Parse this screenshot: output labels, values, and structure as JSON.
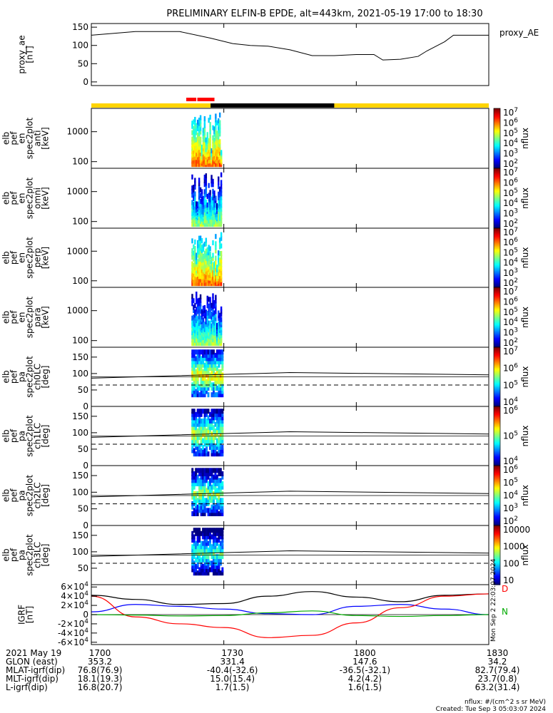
{
  "title": "PRELIMINARY ELFIN-B EPDE, alt=443km, 2021-05-19 17:00 to 18:30",
  "colors": {
    "sunlight": "#ffd400",
    "shadow": "#000000",
    "science_marker": "#ff0000",
    "bx": "#000000",
    "by": "#0000ff",
    "bz": "#ff0000",
    "zero_ref": "#00aa00"
  },
  "chart_data": [
    {
      "type": "line",
      "panel": "proxy_ae",
      "ylabel": [
        "proxy_ae",
        "[nT]"
      ],
      "legend": "proxy_AE",
      "ylim": [
        -10,
        160
      ],
      "yticks": [
        "0",
        "50",
        "100",
        "150"
      ],
      "ytick_values": [
        0,
        50,
        100,
        150
      ],
      "x_minutes": [
        0,
        10,
        20,
        27,
        32,
        36,
        40,
        45,
        50,
        55,
        60,
        64,
        66,
        70,
        74,
        76,
        80,
        82,
        84,
        86,
        88,
        90
      ],
      "values": [
        128,
        138,
        138,
        120,
        105,
        100,
        98,
        88,
        72,
        72,
        75,
        75,
        60,
        62,
        70,
        85,
        110,
        128,
        128,
        128,
        128,
        128
      ]
    },
    {
      "type": "heatmap",
      "panel": "en_spec_anti",
      "ylabel": [
        "elb",
        "pef",
        "en",
        "spec2plot",
        "anti",
        "[keV]"
      ],
      "yticks": [
        "100",
        "1000"
      ],
      "colorbar_label": "nflux",
      "colorbar_ticks": [
        "10^2",
        "10^3",
        "10^4",
        "10^5",
        "10^6",
        "10^7"
      ],
      "activity_minutes": [
        22.5,
        25.5
      ]
    },
    {
      "type": "heatmap",
      "panel": "en_spec_omni",
      "ylabel": [
        "elb",
        "pef",
        "en",
        "spec2plot",
        "omni",
        "[keV]"
      ],
      "yticks": [
        "100",
        "1000"
      ],
      "colorbar_label": "nflux",
      "colorbar_ticks": [
        "10^2",
        "10^3",
        "10^4",
        "10^5",
        "10^6",
        "10^7"
      ],
      "activity_minutes": [
        22.5,
        25.5
      ]
    },
    {
      "type": "heatmap",
      "panel": "en_spec_perp",
      "ylabel": [
        "elb",
        "pef",
        "en",
        "spec2plot",
        "perp",
        "[keV]"
      ],
      "yticks": [
        "100",
        "1000"
      ],
      "colorbar_label": "nflux",
      "colorbar_ticks": [
        "10^2",
        "10^3",
        "10^4",
        "10^5",
        "10^6",
        "10^7"
      ],
      "activity_minutes": [
        22.5,
        25.5
      ]
    },
    {
      "type": "heatmap",
      "panel": "en_spec_para",
      "ylabel": [
        "elb",
        "pef",
        "en",
        "spec2plot",
        "para",
        "[keV]"
      ],
      "yticks": [
        "100",
        "1000"
      ],
      "colorbar_label": "nflux",
      "colorbar_ticks": [
        "10^2",
        "10^3",
        "10^4",
        "10^5",
        "10^6",
        "10^7"
      ],
      "activity_minutes": [
        22.5,
        25.5
      ]
    },
    {
      "type": "heatmap",
      "panel": "pa_spec_ch0LC",
      "ylabel": [
        "elb",
        "pef",
        "pa",
        "spec2plot",
        "ch0LC",
        "[deg]"
      ],
      "yticks": [
        "0",
        "50",
        "100",
        "150"
      ],
      "ylim": [
        0,
        180
      ],
      "colorbar_label": "nflux",
      "colorbar_ticks": [
        "10^4",
        "10^5",
        "10^6",
        "10^7"
      ],
      "losscone_deg": [
        86,
        103,
        96
      ],
      "antilosscone_deg": 65
    },
    {
      "type": "heatmap",
      "panel": "pa_spec_ch1LC",
      "ylabel": [
        "elb",
        "pef",
        "pa",
        "spec2plot",
        "ch1LC",
        "[deg]"
      ],
      "yticks": [
        "0",
        "50",
        "100",
        "150"
      ],
      "ylim": [
        0,
        180
      ],
      "colorbar_label": "nflux",
      "colorbar_ticks": [
        "10^4",
        "10^5",
        "10^6"
      ],
      "losscone_deg": [
        86,
        103,
        96
      ],
      "antilosscone_deg": 65
    },
    {
      "type": "heatmap",
      "panel": "pa_spec_ch2LC",
      "ylabel": [
        "elb",
        "pef",
        "pa",
        "spec2plot",
        "ch2LC",
        "[deg]"
      ],
      "yticks": [
        "0",
        "50",
        "100",
        "150"
      ],
      "ylim": [
        0,
        180
      ],
      "colorbar_label": "nflux",
      "colorbar_ticks": [
        "10^2",
        "10^3",
        "10^4",
        "10^5",
        "10^6"
      ],
      "losscone_deg": [
        86,
        103,
        96
      ],
      "antilosscone_deg": 65
    },
    {
      "type": "heatmap",
      "panel": "pa_spec_ch3LC",
      "ylabel": [
        "elb",
        "pef",
        "pa",
        "spec2plot",
        "ch3LC",
        "[deg]"
      ],
      "yticks": [
        "50",
        "100",
        "150"
      ],
      "ylim": [
        0,
        180
      ],
      "colorbar_label": "nflux",
      "colorbar_ticks": [
        "10",
        "100",
        "1000",
        "10000"
      ],
      "losscone_deg": [
        86,
        103,
        96
      ],
      "antilosscone_deg": 65
    },
    {
      "type": "line",
      "panel": "igrf",
      "ylabel": [
        "IGRF",
        "[nT]"
      ],
      "ylim": [
        -65000,
        65000
      ],
      "yticks": [
        "-6×10^4",
        "-4×10^4",
        "-2×10^4",
        "0",
        "2×10^4",
        "4×10^4",
        "6×10^4"
      ],
      "ytick_values": [
        -60000,
        -40000,
        -20000,
        0,
        20000,
        40000,
        60000
      ],
      "legend": [
        "D",
        "N"
      ],
      "x_minutes": [
        0,
        10,
        20,
        30,
        40,
        50,
        60,
        70,
        80,
        90
      ],
      "series": [
        {
          "values": [
            42000,
            33000,
            22000,
            24000,
            40000,
            50000,
            38000,
            28000,
            42000,
            45000
          ]
        },
        {
          "values": [
            6000,
            22000,
            18000,
            12000,
            2000,
            0,
            18000,
            22000,
            12000,
            0
          ]
        },
        {
          "values": [
            40000,
            -5000,
            -20000,
            -28000,
            -50000,
            -45000,
            -18000,
            15000,
            40000,
            45000
          ]
        },
        {
          "values": [
            0,
            -1000,
            -3000,
            -2000,
            4000,
            8000,
            -2000,
            -4000,
            -2000,
            0
          ]
        }
      ],
      "creation_stamp": "Mon Sep 2 22:03:07 2024"
    }
  ],
  "time_axis": {
    "labels": [
      "2021 May 19",
      "GLON (east)",
      "MLAT-igrf(dip)",
      "MLT-igrf(dip)",
      "L-igrf(dip)"
    ],
    "ticks": [
      {
        "minute": 0,
        "time": "1700",
        "glon": "353.2",
        "mlat": "76.8(76.9)",
        "mlt": "18.1(19.3)",
        "l": "16.8(20.7)"
      },
      {
        "minute": 30,
        "time": "1730",
        "glon": "331.4",
        "mlat": "-40.4(-32.6)",
        "mlt": "15.0(15.4)",
        "l": "1.7(1.5)"
      },
      {
        "minute": 60,
        "time": "1800",
        "glon": "147.6",
        "mlat": "-36.5(-32.1)",
        "mlt": "4.2(4.2)",
        "l": "1.6(1.5)"
      },
      {
        "minute": 90,
        "time": "1830",
        "glon": "34.2",
        "mlat": "82.7(79.4)",
        "mlt": "23.7(0.8)",
        "l": "63.2(31.4)"
      }
    ]
  },
  "footer": {
    "units": "nflux: #/(cm^2 s sr MeV)",
    "created": "Created: Tue Sep  3 05:03:07 2024"
  }
}
